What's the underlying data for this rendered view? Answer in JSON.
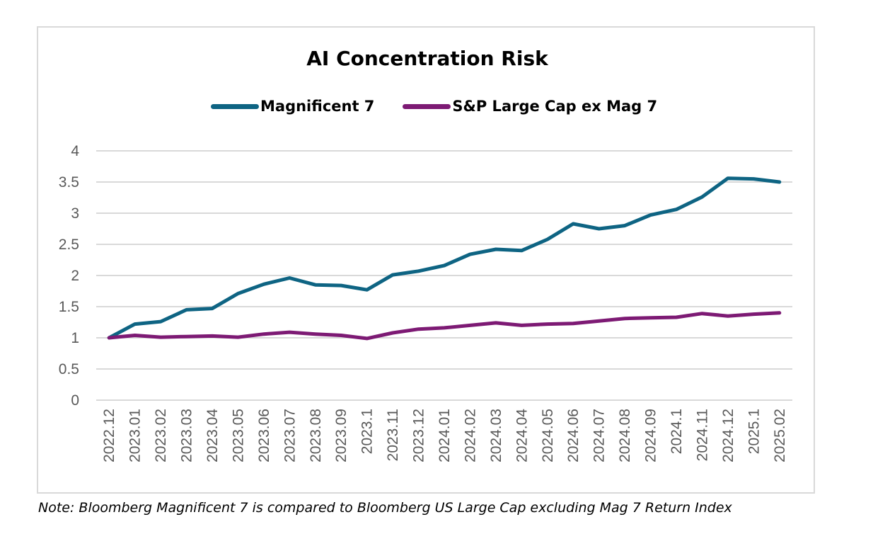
{
  "chart_data": {
    "type": "line",
    "title": "AI Concentration Risk",
    "xlabel": "",
    "ylabel": "",
    "ylim": [
      0,
      4
    ],
    "y_ticks": [
      "0",
      "0.5",
      "1",
      "1.5",
      "2",
      "2.5",
      "3",
      "3.5",
      "4"
    ],
    "grid": true,
    "legend_position": "top",
    "categories": [
      "2022.12",
      "2023.01",
      "2023.02",
      "2023.03",
      "2023.04",
      "2023.05",
      "2023.06",
      "2023.07",
      "2023.08",
      "2023.09",
      "2023.1",
      "2023.11",
      "2023.12",
      "2024.01",
      "2024.02",
      "2024.03",
      "2024.04",
      "2024.05",
      "2024.06",
      "2024.07",
      "2024.08",
      "2024.09",
      "2024.1",
      "2024.11",
      "2024.12",
      "2025.1",
      "2025.02"
    ],
    "series": [
      {
        "name": "Magnificent 7",
        "color": "#0e6483",
        "values": [
          1.0,
          1.22,
          1.26,
          1.45,
          1.47,
          1.71,
          1.86,
          1.96,
          1.85,
          1.84,
          1.77,
          2.01,
          2.07,
          2.16,
          2.34,
          2.42,
          2.4,
          2.58,
          2.83,
          2.75,
          2.8,
          2.97,
          3.06,
          3.26,
          3.56,
          3.55,
          3.5
        ]
      },
      {
        "name": "S&P Large Cap ex Mag 7",
        "color": "#7d1a74",
        "values": [
          1.0,
          1.04,
          1.01,
          1.02,
          1.03,
          1.01,
          1.06,
          1.09,
          1.06,
          1.04,
          0.99,
          1.08,
          1.14,
          1.16,
          1.2,
          1.24,
          1.2,
          1.22,
          1.23,
          1.27,
          1.31,
          1.32,
          1.33,
          1.39,
          1.35,
          1.38,
          1.4
        ]
      }
    ],
    "gridline_color": "#d9d9d9",
    "axis_text_color": "#595959"
  },
  "note": "Note: Bloomberg Magnificent 7 is compared to Bloomberg US Large Cap excluding Mag 7 Return Index"
}
